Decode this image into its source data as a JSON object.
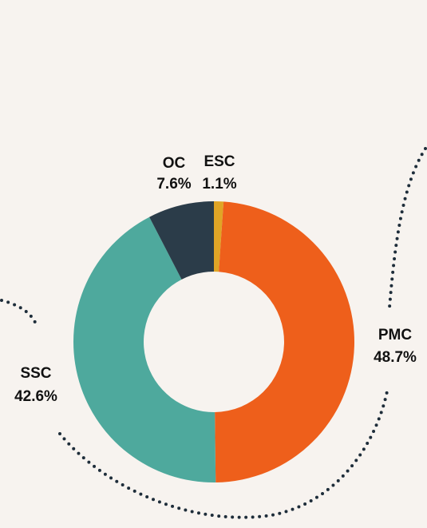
{
  "chart_data": {
    "type": "donut",
    "categories": [
      "ESC",
      "PMC",
      "SSC",
      "OC"
    ],
    "values": [
      1.1,
      48.7,
      42.6,
      7.6
    ],
    "value_labels": [
      "1.1%",
      "48.7%",
      "42.6%",
      "7.6%"
    ],
    "colors": [
      "#e0a526",
      "#ee5f1b",
      "#4ea99d",
      "#2b3c49"
    ]
  }
}
